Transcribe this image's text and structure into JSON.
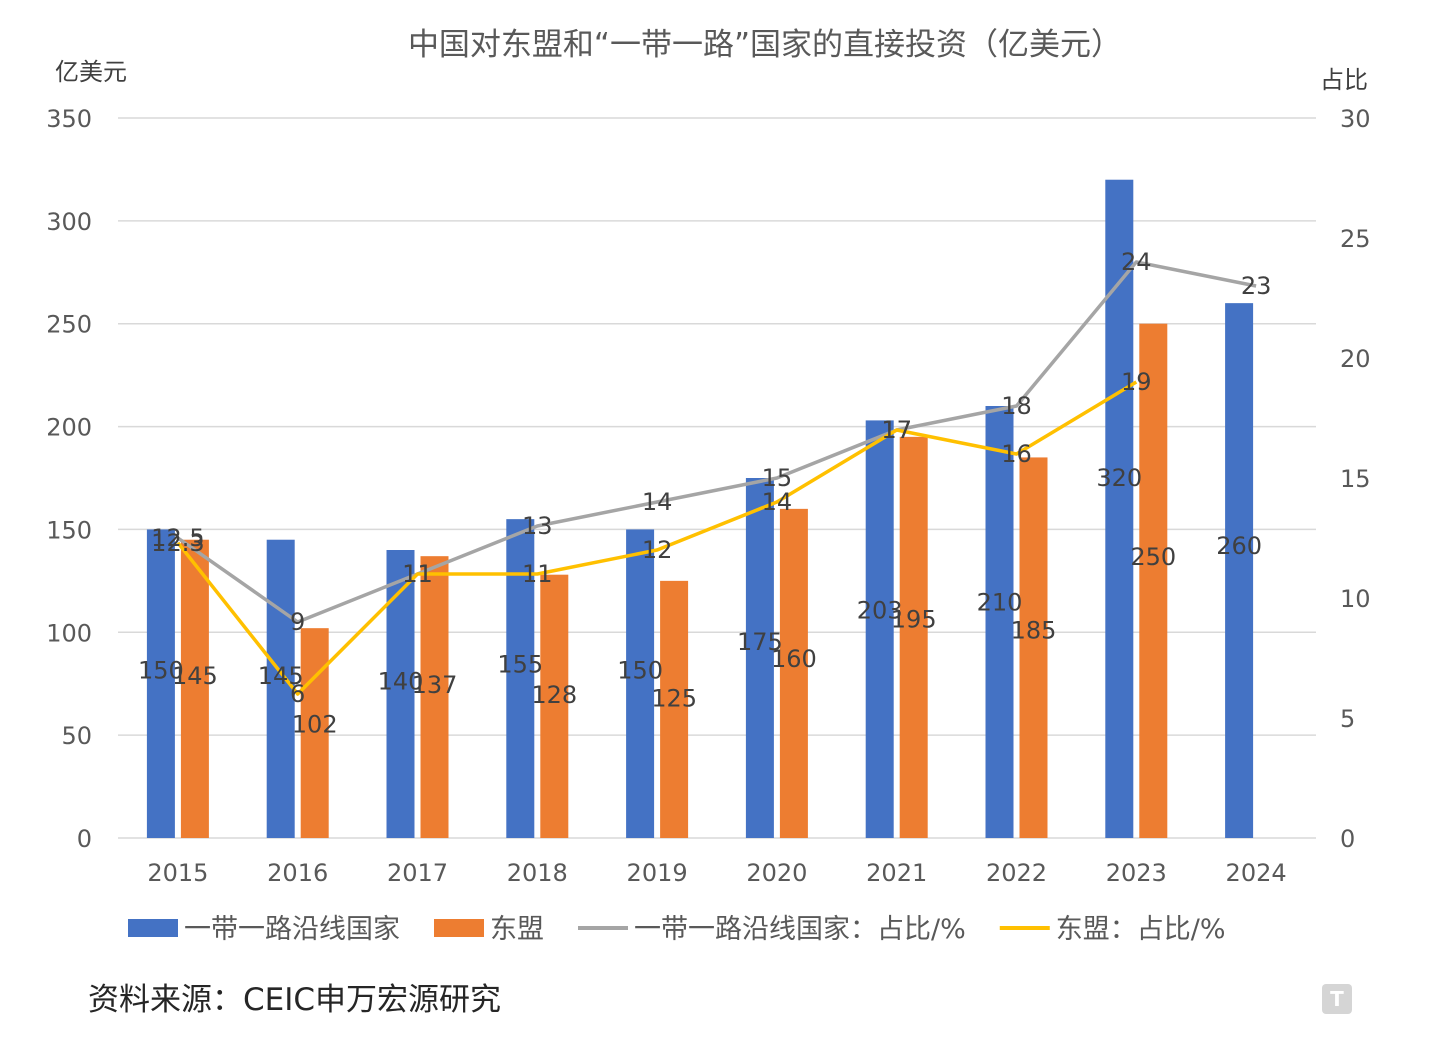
{
  "chart_data": {
    "type": "bar",
    "title": "中国对东盟和“一带一路”国家的直接投资（亿美元）",
    "ylabel_left": "亿美元",
    "ylabel_right": "占比",
    "categories": [
      "2015",
      "2016",
      "2017",
      "2018",
      "2019",
      "2020",
      "2021",
      "2022",
      "2023",
      "2024"
    ],
    "ylim_left": [
      0,
      350
    ],
    "yticks_left": [
      0,
      50,
      100,
      150,
      200,
      250,
      300,
      350
    ],
    "ylim_right": [
      0,
      30
    ],
    "yticks_right": [
      0,
      5,
      10,
      15,
      20,
      25,
      30
    ],
    "grid": true,
    "legend_position": "bottom",
    "bar_series": [
      {
        "name": "一带一路沿线国家",
        "color": "#4472C4",
        "values": [
          150,
          145,
          140,
          155,
          150,
          175,
          203,
          210,
          320,
          260
        ],
        "labels": [
          "150",
          "145",
          "140",
          "155",
          "150",
          "175",
          "203",
          "210",
          "320",
          "260"
        ]
      },
      {
        "name": "东盟",
        "color": "#ED7D31",
        "values": [
          145,
          102,
          137,
          128,
          125,
          160,
          195,
          185,
          250,
          null
        ],
        "labels": [
          "145",
          "102",
          "137",
          "128",
          "125",
          "160",
          "195",
          "185",
          "250",
          ""
        ]
      }
    ],
    "line_series": [
      {
        "name": "一带一路沿线国家：占比/%",
        "color": "#A5A5A5",
        "values": [
          12.5,
          9,
          11,
          13,
          14,
          15,
          17,
          18,
          24,
          23
        ],
        "labels": [
          "12.5",
          "9",
          "11",
          "13",
          "14",
          "15",
          "17",
          "18",
          "24",
          "23"
        ]
      },
      {
        "name": "东盟：占比/%",
        "color": "#FFC000",
        "values": [
          12.3,
          6,
          11,
          11,
          12,
          14,
          17,
          16,
          19,
          null
        ],
        "labels": [
          "12.3",
          "6",
          "11",
          "11",
          "12",
          "14",
          "17",
          "16",
          "19",
          ""
        ]
      }
    ],
    "legend_labels": [
      "一带一路沿线国家",
      "东盟",
      "一带一路沿线国家：占比/%",
      "东盟：占比/%"
    ]
  },
  "source_note": "资料来源：CEIC申万宏源研究",
  "watermark": {
    "glyph": "T"
  }
}
